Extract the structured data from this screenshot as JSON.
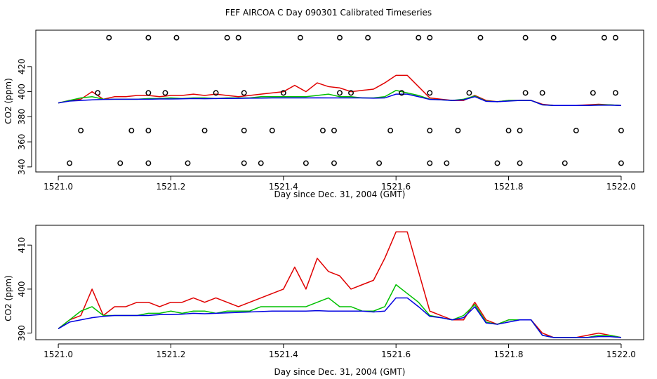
{
  "title": "FEF AIRCOA C  Day 090301  Calibrated Timeseries",
  "colors": {
    "red": "#e00000",
    "green": "#00c000",
    "blue": "#0000e0"
  },
  "chart_data": [
    {
      "type": "line",
      "xlabel": "Day since Dec. 31, 2004 (GMT)",
      "ylabel": "CO2 (ppm)",
      "xlim": [
        1520.96,
        1522.04
      ],
      "ylim": [
        336,
        449
      ],
      "xticks": [
        1521.0,
        1521.2,
        1521.4,
        1521.6,
        1521.8,
        1522.0
      ],
      "xtick_labels": [
        "1521.0",
        "1521.2",
        "1521.4",
        "1521.6",
        "1521.8",
        "1522.0"
      ],
      "yticks": [
        340,
        360,
        380,
        400,
        420
      ],
      "ytick_labels": [
        "340",
        "360",
        "380",
        "400",
        "420"
      ],
      "markers": {
        "y_levels": [
          443,
          399,
          369,
          343
        ],
        "level_443": [
          1521.09,
          1521.16,
          1521.21,
          1521.3,
          1521.32,
          1521.43,
          1521.5,
          1521.55,
          1521.64,
          1521.66,
          1521.75,
          1521.83,
          1521.88,
          1521.97,
          1521.99
        ],
        "level_399": [
          1521.07,
          1521.16,
          1521.19,
          1521.28,
          1521.33,
          1521.4,
          1521.5,
          1521.52,
          1521.61,
          1521.66,
          1521.73,
          1521.83,
          1521.86,
          1521.95,
          1521.99
        ],
        "level_369": [
          1521.04,
          1521.13,
          1521.16,
          1521.26,
          1521.33,
          1521.38,
          1521.47,
          1521.49,
          1521.59,
          1521.66,
          1521.71,
          1521.8,
          1521.82,
          1521.92,
          1522.0
        ],
        "level_343": [
          1521.02,
          1521.11,
          1521.16,
          1521.23,
          1521.33,
          1521.36,
          1521.44,
          1521.49,
          1521.57,
          1521.66,
          1521.69,
          1521.78,
          1521.82,
          1521.9,
          1522.0
        ]
      }
    },
    {
      "type": "line",
      "xlabel": "Day since Dec. 31, 2004 (GMT)",
      "ylabel": "CO2 (ppm)",
      "xlim": [
        1520.96,
        1522.04
      ],
      "ylim": [
        388.5,
        414.5
      ],
      "xticks": [
        1521.0,
        1521.2,
        1521.4,
        1521.6,
        1521.8,
        1522.0
      ],
      "xtick_labels": [
        "1521.0",
        "1521.2",
        "1521.4",
        "1521.6",
        "1521.8",
        "1522.0"
      ],
      "yticks": [
        390,
        400,
        410
      ],
      "ytick_labels": [
        "390",
        "400",
        "410"
      ],
      "x": [
        1521.0,
        1521.02,
        1521.04,
        1521.06,
        1521.08,
        1521.1,
        1521.12,
        1521.14,
        1521.16,
        1521.18,
        1521.2,
        1521.22,
        1521.24,
        1521.26,
        1521.28,
        1521.3,
        1521.32,
        1521.34,
        1521.36,
        1521.38,
        1521.4,
        1521.42,
        1521.44,
        1521.46,
        1521.48,
        1521.5,
        1521.52,
        1521.54,
        1521.56,
        1521.58,
        1521.6,
        1521.62,
        1521.64,
        1521.66,
        1521.68,
        1521.7,
        1521.72,
        1521.74,
        1521.76,
        1521.78,
        1521.8,
        1521.82,
        1521.84,
        1521.86,
        1521.88,
        1521.9,
        1521.92,
        1521.94,
        1521.96,
        1521.98,
        1522.0
      ],
      "series": [
        {
          "name": "red",
          "values": [
            391,
            393,
            394,
            400,
            394,
            396,
            396,
            397,
            397,
            396,
            397,
            397,
            398,
            397,
            398,
            397,
            396,
            397,
            398,
            399,
            400,
            405,
            400,
            407,
            404,
            403,
            400,
            401,
            402,
            407,
            413,
            413,
            404,
            395,
            394,
            393,
            393,
            397,
            393,
            392,
            393,
            393,
            393,
            390,
            389,
            389,
            389,
            389.5,
            390,
            389.5,
            389
          ]
        },
        {
          "name": "green",
          "values": [
            391,
            393,
            395,
            396,
            394,
            394,
            394,
            394,
            394.5,
            394.5,
            395,
            394.5,
            395,
            395,
            394.5,
            395,
            395,
            395,
            396,
            396,
            396,
            396,
            396,
            397,
            398,
            396,
            396,
            395,
            395,
            396,
            401,
            399,
            397,
            394,
            393.5,
            393,
            394,
            396.5,
            392.5,
            392,
            393,
            393,
            393,
            389.5,
            389,
            389,
            389,
            389,
            389.5,
            389.5,
            389
          ]
        },
        {
          "name": "blue",
          "values": [
            391,
            392.5,
            393,
            393.5,
            393.8,
            394,
            394,
            394,
            394,
            394.2,
            394.2,
            394.3,
            394.5,
            394.4,
            394.5,
            394.6,
            394.7,
            394.8,
            394.9,
            395,
            395,
            395,
            395,
            395.1,
            395,
            395,
            395,
            395,
            394.8,
            395,
            398,
            398,
            396,
            393.8,
            393.5,
            393,
            393.5,
            396,
            392.3,
            392,
            392.5,
            393,
            393,
            389.5,
            389,
            389,
            389,
            389,
            389.2,
            389.2,
            389
          ]
        }
      ]
    }
  ]
}
